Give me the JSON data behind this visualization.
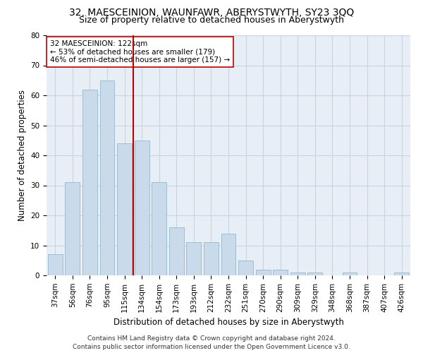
{
  "title1": "32, MAESCEINION, WAUNFAWR, ABERYSTWYTH, SY23 3QQ",
  "title2": "Size of property relative to detached houses in Aberystwyth",
  "xlabel": "Distribution of detached houses by size in Aberystwyth",
  "ylabel": "Number of detached properties",
  "categories": [
    "37sqm",
    "56sqm",
    "76sqm",
    "95sqm",
    "115sqm",
    "134sqm",
    "154sqm",
    "173sqm",
    "193sqm",
    "212sqm",
    "232sqm",
    "251sqm",
    "270sqm",
    "290sqm",
    "309sqm",
    "329sqm",
    "348sqm",
    "368sqm",
    "387sqm",
    "407sqm",
    "426sqm"
  ],
  "values": [
    7,
    31,
    62,
    65,
    44,
    45,
    31,
    16,
    11,
    11,
    14,
    5,
    2,
    2,
    1,
    1,
    0,
    1,
    0,
    0,
    1
  ],
  "bar_color": "#c9daea",
  "bar_edge_color": "#a0bdd0",
  "vline_x_index": 4,
  "vline_color": "#bb0000",
  "annotation_text": "32 MAESCEINION: 122sqm\n← 53% of detached houses are smaller (179)\n46% of semi-detached houses are larger (157) →",
  "annotation_box_color": "white",
  "annotation_box_edge_color": "#bb0000",
  "ylim": [
    0,
    80
  ],
  "yticks": [
    0,
    10,
    20,
    30,
    40,
    50,
    60,
    70,
    80
  ],
  "grid_color": "#c8d4e0",
  "background_color": "#e8eef5",
  "footer": "Contains HM Land Registry data © Crown copyright and database right 2024.\nContains public sector information licensed under the Open Government Licence v3.0.",
  "title_fontsize": 10,
  "subtitle_fontsize": 9,
  "axis_label_fontsize": 8.5,
  "tick_fontsize": 7.5,
  "annotation_fontsize": 7.5,
  "footer_fontsize": 6.5
}
